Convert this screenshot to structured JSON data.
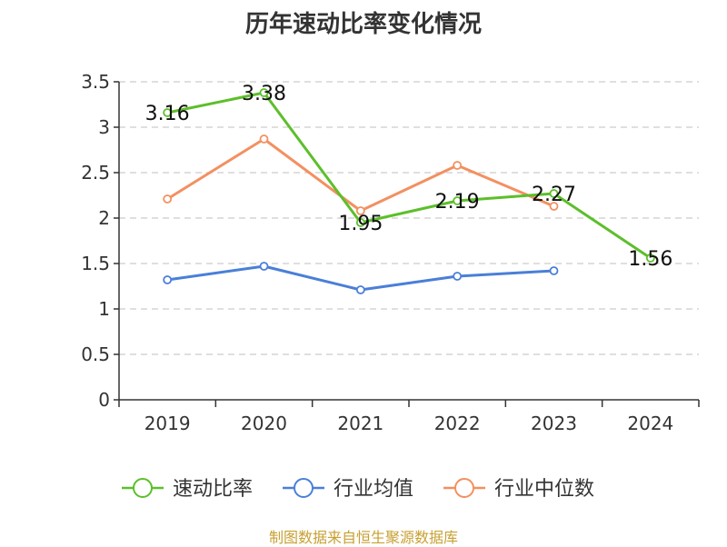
{
  "chart_data": {
    "type": "line",
    "title": "历年速动比率变化情况",
    "categories": [
      "2019",
      "2020",
      "2021",
      "2022",
      "2023",
      "2024"
    ],
    "ylim": [
      0,
      3.5
    ],
    "yticks": [
      "0",
      "0.5",
      "1",
      "1.5",
      "2",
      "2.5",
      "3",
      "3.5"
    ],
    "grid": true,
    "legend_position": "bottom",
    "series": [
      {
        "name": "速动比率",
        "color": "#5cbf2a",
        "values": [
          3.16,
          3.38,
          1.95,
          2.19,
          2.27,
          1.56
        ],
        "labels": [
          "3.16",
          "3.38",
          "1.95",
          "2.19",
          "2.27",
          "1.56"
        ],
        "show_labels": true
      },
      {
        "name": "行业均值",
        "color": "#4a7fd8",
        "values": [
          1.32,
          1.47,
          1.21,
          1.36,
          1.42,
          null
        ],
        "show_labels": false
      },
      {
        "name": "行业中位数",
        "color": "#f39060",
        "values": [
          2.21,
          2.87,
          2.08,
          2.58,
          2.13,
          null
        ],
        "show_labels": false
      }
    ]
  },
  "source": "制图数据来自恒生聚源数据库"
}
